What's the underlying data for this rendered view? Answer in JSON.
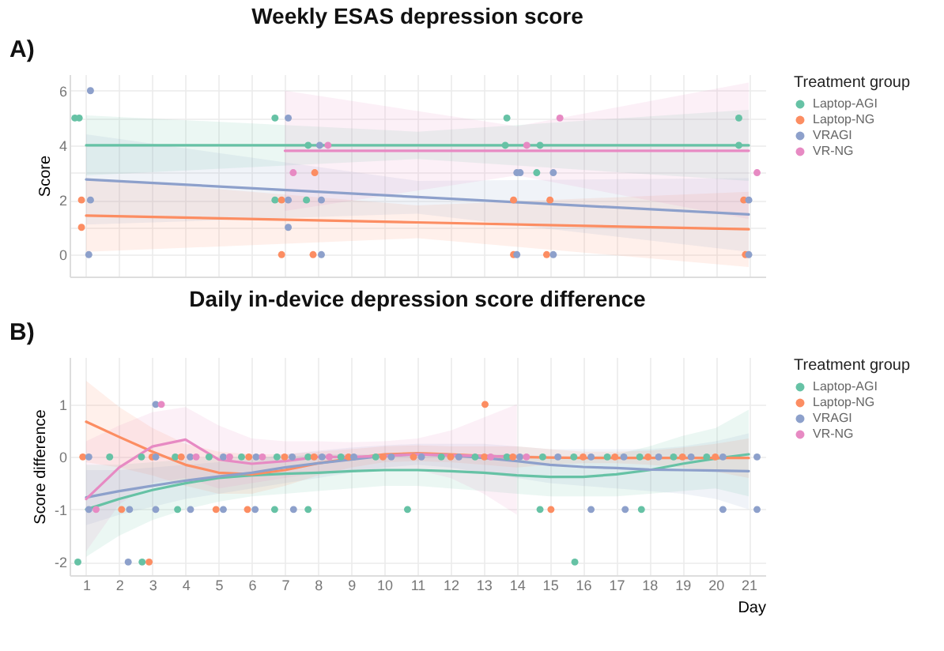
{
  "chart_data": [
    {
      "type": "scatter",
      "title": "Weekly ESAS depression score",
      "annotations": [
        "A)"
      ],
      "ylabel": "Score",
      "legend_title": "Treatment group",
      "legend": "right",
      "grid": true,
      "tick_labels": "y",
      "xlim": [
        0.5,
        21.5
      ],
      "xticks": [
        {
          "value": 1,
          "label": null
        },
        {
          "value": 2,
          "label": null
        },
        {
          "value": 3,
          "label": null
        },
        {
          "value": 4,
          "label": null
        },
        {
          "value": 5,
          "label": null
        },
        {
          "value": 6,
          "label": null
        },
        {
          "value": 7,
          "label": null
        },
        {
          "value": 8,
          "label": null
        },
        {
          "value": 9,
          "label": null
        },
        {
          "value": 10,
          "label": null
        },
        {
          "value": 11,
          "label": null
        },
        {
          "value": 12,
          "label": null
        },
        {
          "value": 13,
          "label": null
        },
        {
          "value": 14,
          "label": null
        },
        {
          "value": 15,
          "label": null
        },
        {
          "value": 16,
          "label": null
        },
        {
          "value": 17,
          "label": null
        },
        {
          "value": 18,
          "label": null
        },
        {
          "value": 19,
          "label": null
        },
        {
          "value": 20,
          "label": null
        },
        {
          "value": 21,
          "label": null
        }
      ],
      "ylim": [
        -0.8,
        6.6
      ],
      "yticks": [
        0,
        {
          "value": 1,
          "label": null
        },
        2,
        {
          "value": 3,
          "label": null
        },
        4,
        {
          "value": 5,
          "label": null
        },
        6
      ],
      "series": [
        {
          "type": "line",
          "color": "#66c2a5",
          "x": [
            1,
            11,
            21
          ],
          "values": [
            4,
            4,
            4
          ],
          "lower": [
            2.9,
            3.5,
            2.7
          ],
          "upper": [
            5.1,
            4.5,
            5.3
          ]
        },
        {
          "type": "line",
          "color": "#fc8d62",
          "x": [
            1,
            11,
            21
          ],
          "values": [
            1.43,
            1.18,
            0.93
          ],
          "lower": [
            0.1,
            0.6,
            -0.45
          ],
          "upper": [
            2.8,
            1.8,
            2.3
          ]
        },
        {
          "type": "line",
          "color": "#8da0cb",
          "x": [
            1,
            11,
            21
          ],
          "values": [
            2.75,
            2.11,
            1.47
          ],
          "lower": [
            1.1,
            1.5,
            0.1
          ],
          "upper": [
            4.4,
            2.7,
            2.8
          ]
        },
        {
          "type": "line",
          "color": "#e78ac3",
          "x": [
            7,
            14,
            21
          ],
          "values": [
            3.8,
            3.8,
            3.8
          ],
          "lower": [
            1.6,
            2.9,
            1.3
          ],
          "upper": [
            6.0,
            4.7,
            6.3
          ]
        },
        {
          "name": "Laptop-AGI",
          "marker": "circle",
          "color": "#66c2a5",
          "x": [
            0.66,
            0.79,
            6.7,
            6.7,
            7.65,
            7.7,
            13.7,
            13.65,
            14.7,
            14.6,
            20.7,
            20.7
          ],
          "values": [
            5,
            5,
            5,
            2,
            2,
            4,
            5,
            4,
            4,
            3,
            5,
            4
          ]
        },
        {
          "name": "Laptop-NG",
          "marker": "circle",
          "color": "#fc8d62",
          "x": [
            0.86,
            0.86,
            6.9,
            7.9,
            6.9,
            7.85,
            13.9,
            15.0,
            13.9,
            14.9,
            20.85,
            20.9
          ],
          "values": [
            2,
            1,
            2,
            3,
            0,
            0,
            2,
            2,
            0,
            0,
            2,
            0
          ]
        },
        {
          "name": "VRAGI",
          "marker": "circle",
          "color": "#8da0cb",
          "x": [
            1.13,
            1.13,
            1.08,
            7.1,
            7.1,
            7.1,
            8.05,
            8.1,
            8.1,
            14.0,
            14.1,
            15.1,
            14.0,
            15.1,
            21.0,
            21.0
          ],
          "values": [
            6,
            2,
            0,
            5,
            2,
            1,
            4,
            2,
            0,
            3,
            3,
            3,
            0,
            0,
            2,
            0
          ]
        },
        {
          "name": "VR-NG",
          "marker": "circle",
          "color": "#e78ac3",
          "x": [
            7.25,
            8.3,
            15.3,
            14.3,
            21.25
          ],
          "values": [
            3,
            4,
            5,
            4,
            3
          ]
        }
      ]
    },
    {
      "type": "scatter",
      "title": "Daily in-device depression score difference",
      "annotations": [
        "B)"
      ],
      "xlabel": "Day",
      "ylabel": "Score difference",
      "legend_title": "Treatment group",
      "legend": "right",
      "grid": true,
      "xlim": [
        0.5,
        21.5
      ],
      "xticks": [
        1,
        2,
        3,
        4,
        5,
        6,
        7,
        8,
        9,
        10,
        11,
        12,
        13,
        14,
        15,
        16,
        17,
        18,
        19,
        20,
        21
      ],
      "ylim": [
        -2.25,
        1.9
      ],
      "yticks": [
        -2,
        -1,
        0,
        1
      ],
      "series": [
        {
          "type": "line",
          "color": "#66c2a5",
          "x": [
            1,
            2,
            3,
            4,
            5,
            6,
            7,
            8,
            9,
            10,
            11,
            12,
            13,
            14,
            15,
            16,
            17,
            18,
            19,
            20,
            21
          ],
          "values": [
            -1.0,
            -0.8,
            -0.63,
            -0.5,
            -0.4,
            -0.35,
            -0.32,
            -0.3,
            -0.27,
            -0.25,
            -0.25,
            -0.27,
            -0.3,
            -0.35,
            -0.38,
            -0.38,
            -0.33,
            -0.25,
            -0.13,
            -0.03,
            0.05
          ],
          "lower": [
            -1.9,
            -1.5,
            -1.2,
            -1.0,
            -0.85,
            -0.75,
            -0.7,
            -0.65,
            -0.6,
            -0.55,
            -0.55,
            -0.6,
            -0.65,
            -0.7,
            -0.75,
            -0.75,
            -0.75,
            -0.7,
            -0.65,
            -0.6,
            -0.75
          ],
          "upper": [
            -0.15,
            -0.15,
            -0.1,
            -0.05,
            0,
            0,
            0,
            0.05,
            0.05,
            0.05,
            0.05,
            0.05,
            0.05,
            0.05,
            0,
            0,
            0.05,
            0.2,
            0.4,
            0.55,
            0.9
          ]
        },
        {
          "type": "line",
          "color": "#fc8d62",
          "x": [
            1,
            2,
            3,
            4,
            5,
            6,
            7,
            8,
            9,
            10,
            11,
            12,
            13,
            14,
            15,
            16,
            17,
            18,
            19,
            20,
            21
          ],
          "values": [
            0.67,
            0.38,
            0.1,
            -0.15,
            -0.3,
            -0.33,
            -0.25,
            -0.12,
            -0.03,
            0.05,
            0.07,
            0.05,
            0.02,
            0,
            -0.01,
            -0.02,
            -0.02,
            -0.02,
            -0.02,
            -0.02,
            -0.02
          ],
          "lower": [
            -0.1,
            -0.2,
            -0.35,
            -0.55,
            -0.7,
            -0.7,
            -0.55,
            -0.35,
            -0.2,
            -0.1,
            -0.08,
            -0.1,
            -0.15,
            -0.2,
            -0.15,
            -0.12,
            -0.12,
            -0.15,
            -0.2,
            -0.28,
            -0.4
          ],
          "upper": [
            1.45,
            0.95,
            0.55,
            0.25,
            0.1,
            0.05,
            0.05,
            0.1,
            0.15,
            0.2,
            0.22,
            0.2,
            0.2,
            0.2,
            0.15,
            0.1,
            0.1,
            0.12,
            0.18,
            0.25,
            0.35
          ]
        },
        {
          "type": "line",
          "color": "#8da0cb",
          "x": [
            1,
            2,
            3,
            4,
            5,
            6,
            7,
            8,
            9,
            10,
            11,
            12,
            13,
            14,
            15,
            16,
            17,
            18,
            19,
            20,
            21
          ],
          "values": [
            -0.77,
            -0.65,
            -0.55,
            -0.45,
            -0.37,
            -0.3,
            -0.2,
            -0.12,
            -0.05,
            0.02,
            0.05,
            0.03,
            -0.02,
            -0.08,
            -0.15,
            -0.19,
            -0.21,
            -0.24,
            -0.25,
            -0.26,
            -0.27
          ],
          "lower": [
            -1.3,
            -1.1,
            -0.95,
            -0.8,
            -0.7,
            -0.6,
            -0.5,
            -0.4,
            -0.3,
            -0.2,
            -0.15,
            -0.2,
            -0.3,
            -0.4,
            -0.5,
            -0.55,
            -0.6,
            -0.65,
            -0.7,
            -0.8,
            -1.0
          ],
          "upper": [
            -0.25,
            -0.25,
            -0.2,
            -0.15,
            -0.1,
            -0.05,
            0.05,
            0.12,
            0.18,
            0.22,
            0.25,
            0.25,
            0.25,
            0.2,
            0.15,
            0.15,
            0.15,
            0.15,
            0.2,
            0.3,
            0.45
          ]
        },
        {
          "type": "line",
          "color": "#e78ac3",
          "x": [
            1,
            2,
            3,
            4,
            5,
            6,
            7,
            8,
            9,
            10,
            11,
            12,
            13,
            14
          ],
          "values": [
            -0.8,
            -0.2,
            0.2,
            0.33,
            -0.05,
            -0.13,
            -0.08,
            0,
            0,
            0.02,
            0.05,
            0.03,
            0.02,
            0
          ],
          "lower": [
            -1.8,
            -0.9,
            -0.5,
            -0.4,
            -0.6,
            -0.5,
            -0.4,
            -0.3,
            -0.25,
            -0.25,
            -0.25,
            -0.4,
            -0.7,
            -1.1
          ],
          "upper": [
            0.3,
            0.6,
            0.85,
            0.95,
            0.6,
            0.35,
            0.3,
            0.3,
            0.28,
            0.3,
            0.35,
            0.5,
            0.75,
            1.0
          ]
        },
        {
          "name": "Laptop-AGI",
          "marker": "circle",
          "color": "#66c2a5",
          "x": [
            1.71,
            2.67,
            3.69,
            4.71,
            5.69,
            6.76,
            7.7,
            8.69,
            9.74,
            11.72,
            12.74,
            13.7,
            14.78,
            15.72,
            16.73,
            17.71,
            18.73,
            19.73,
            3.76,
            6.69,
            7.7,
            10.7,
            14.7,
            17.76,
            0.75,
            2.69,
            15.75
          ],
          "values": [
            0,
            0,
            0,
            0,
            0,
            0,
            0,
            0,
            0,
            0,
            0,
            0,
            0,
            0,
            0,
            0,
            0,
            0,
            -1,
            -1,
            -1,
            -1,
            -1,
            -1,
            -2,
            -2,
            -2
          ]
        },
        {
          "name": "Laptop-NG",
          "marker": "circle",
          "color": "#fc8d62",
          "x": [
            0.9,
            2.99,
            3.87,
            5.91,
            6.99,
            7.88,
            8.92,
            9.96,
            10.88,
            12.0,
            13.02,
            13.88,
            16.0,
            16.96,
            17.96,
            19.0,
            19.99,
            2.07,
            4.92,
            5.87,
            15.03,
            2.9,
            13.04
          ],
          "values": [
            0,
            0,
            0,
            0,
            0,
            0,
            0,
            0,
            0,
            0,
            0,
            0,
            0,
            0,
            0,
            0,
            0,
            -1,
            -1,
            -1,
            -1,
            -2,
            1
          ]
        },
        {
          "name": "VRAGI",
          "marker": "circle",
          "color": "#8da0cb",
          "x": [
            1.08,
            3.1,
            4.14,
            5.14,
            6.13,
            7.22,
            8.12,
            9.08,
            10.21,
            11.12,
            12.25,
            14.09,
            15.24,
            16.24,
            17.23,
            18.28,
            19.26,
            20.22,
            21.25,
            1.08,
            2.31,
            3.1,
            4.15,
            5.14,
            6.1,
            7.26,
            16.24,
            17.27,
            20.22,
            21.25,
            2.27,
            3.1
          ],
          "values": [
            0,
            0,
            0,
            0,
            0,
            0,
            0,
            0,
            0,
            0,
            0,
            0,
            0,
            0,
            0,
            0,
            0,
            0,
            0,
            -1,
            -1,
            -1,
            -1,
            -1,
            -1,
            -1,
            -1,
            -1,
            -1,
            -1,
            -2,
            1
          ]
        },
        {
          "name": "VR-NG",
          "marker": "circle",
          "color": "#e78ac3",
          "x": [
            4.32,
            5.33,
            6.32,
            8.34,
            13.21,
            14.29,
            1.3,
            3.27
          ],
          "values": [
            0,
            0,
            0,
            0,
            0,
            0,
            -1,
            1
          ]
        }
      ]
    }
  ]
}
